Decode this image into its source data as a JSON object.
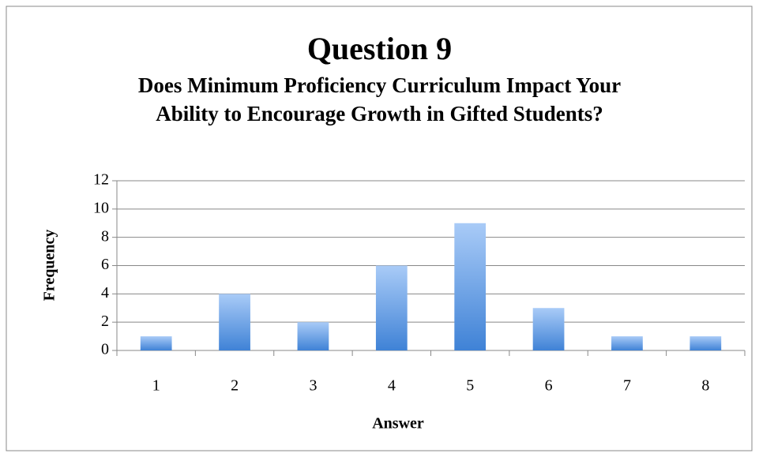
{
  "chart_data": {
    "type": "bar",
    "title": "Question 9",
    "subtitle": "Does Minimum Proficiency Curriculum Impact Your Ability to Encourage Growth in Gifted Students?",
    "x_label": "Answer",
    "y_label": "Frequency",
    "categories": [
      "1",
      "2",
      "3",
      "4",
      "5",
      "6",
      "7",
      "8"
    ],
    "values": [
      1,
      4,
      2,
      6,
      9,
      3,
      1,
      1
    ],
    "color": "#3f82d6",
    "ylim": [
      0,
      12
    ],
    "yticks": [
      0,
      2,
      4,
      6,
      8,
      10,
      12
    ],
    "grid": true
  }
}
